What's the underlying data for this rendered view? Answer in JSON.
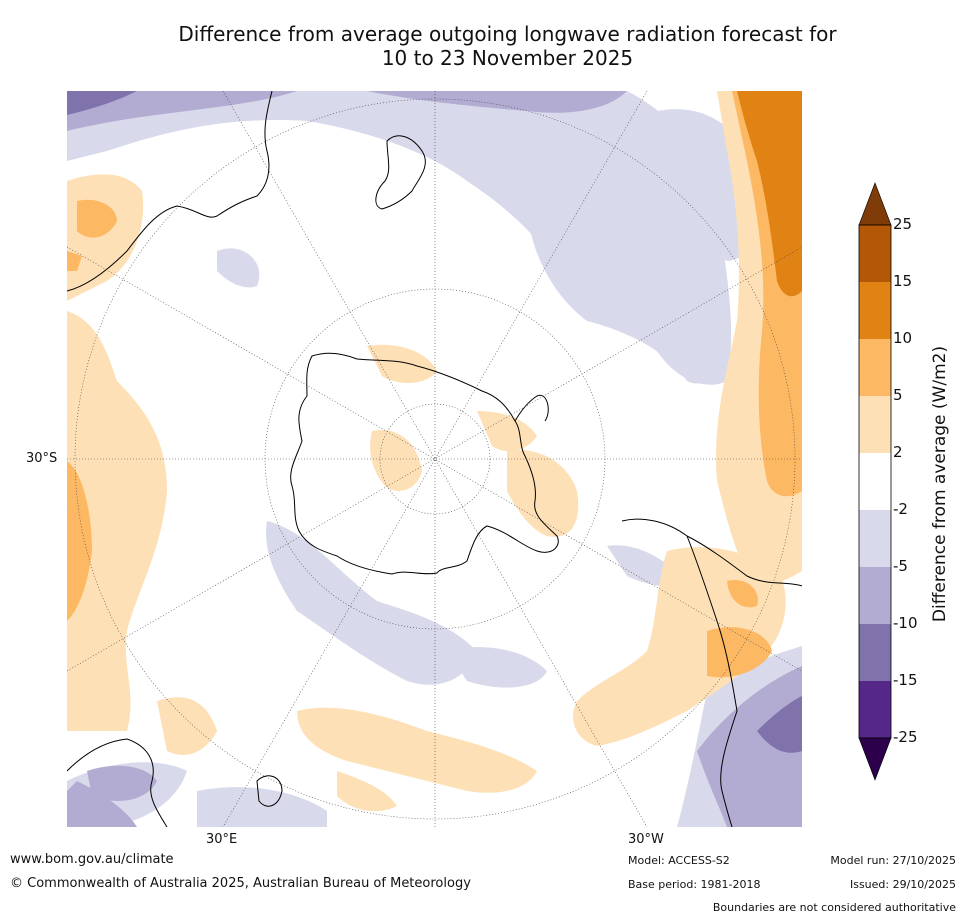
{
  "title": {
    "line1": "Difference from average outgoing longwave radiation forecast for",
    "line2": "10 to 23 November 2025"
  },
  "map": {
    "projection": "south polar stereographic",
    "lat_label": "30°S",
    "lon_label_east": "30°E",
    "lon_label_west": "30°W"
  },
  "colorbar": {
    "label": "Difference from average (W/m2)",
    "ticks": [
      "25",
      "15",
      "10",
      "5",
      "2",
      "-2",
      "-5",
      "-10",
      "-15",
      "-25"
    ],
    "colors": {
      "over": "#7f3b08",
      "b15_25": "#b35806",
      "b10_15": "#e08214",
      "b5_10": "#fdb863",
      "b2_5": "#fee0b6",
      "neutral": "#ffffff",
      "m2_m5": "#d8daeb",
      "m5_m10": "#b2abd2",
      "m10_m15": "#8073ac",
      "m15_m25": "#542788",
      "under": "#2d004b"
    }
  },
  "footer": {
    "website": "www.bom.gov.au/climate",
    "copyright": "© Commonwealth of Australia 2025, Australian Bureau of Meteorology",
    "model": "Model: ACCESS-S2",
    "base_period": "Base period: 1981-2018",
    "model_run": "Model run: 27/10/2025",
    "issued": "Issued: 29/10/2025",
    "boundaries": "Boundaries are not considered authoritative"
  }
}
